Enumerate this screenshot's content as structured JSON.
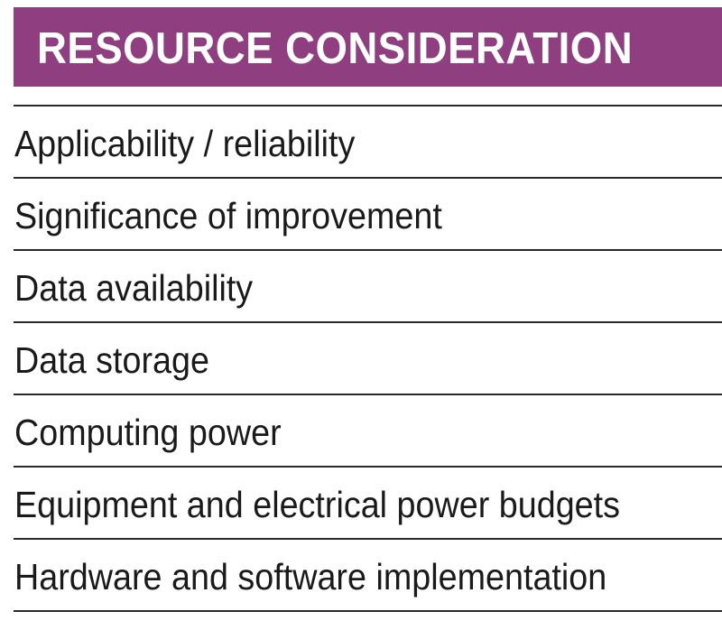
{
  "header": {
    "title": "RESOURCE CONSIDERATION",
    "background_color": "#8f3f7f",
    "text_color": "#ffffff"
  },
  "items": [
    {
      "label": "Applicability / reliability"
    },
    {
      "label": "Significance of improvement"
    },
    {
      "label": "Data availability"
    },
    {
      "label": "Data storage"
    },
    {
      "label": "Computing power"
    },
    {
      "label": "Equipment and electrical power budgets"
    },
    {
      "label": "Hardware and software implementation"
    }
  ]
}
